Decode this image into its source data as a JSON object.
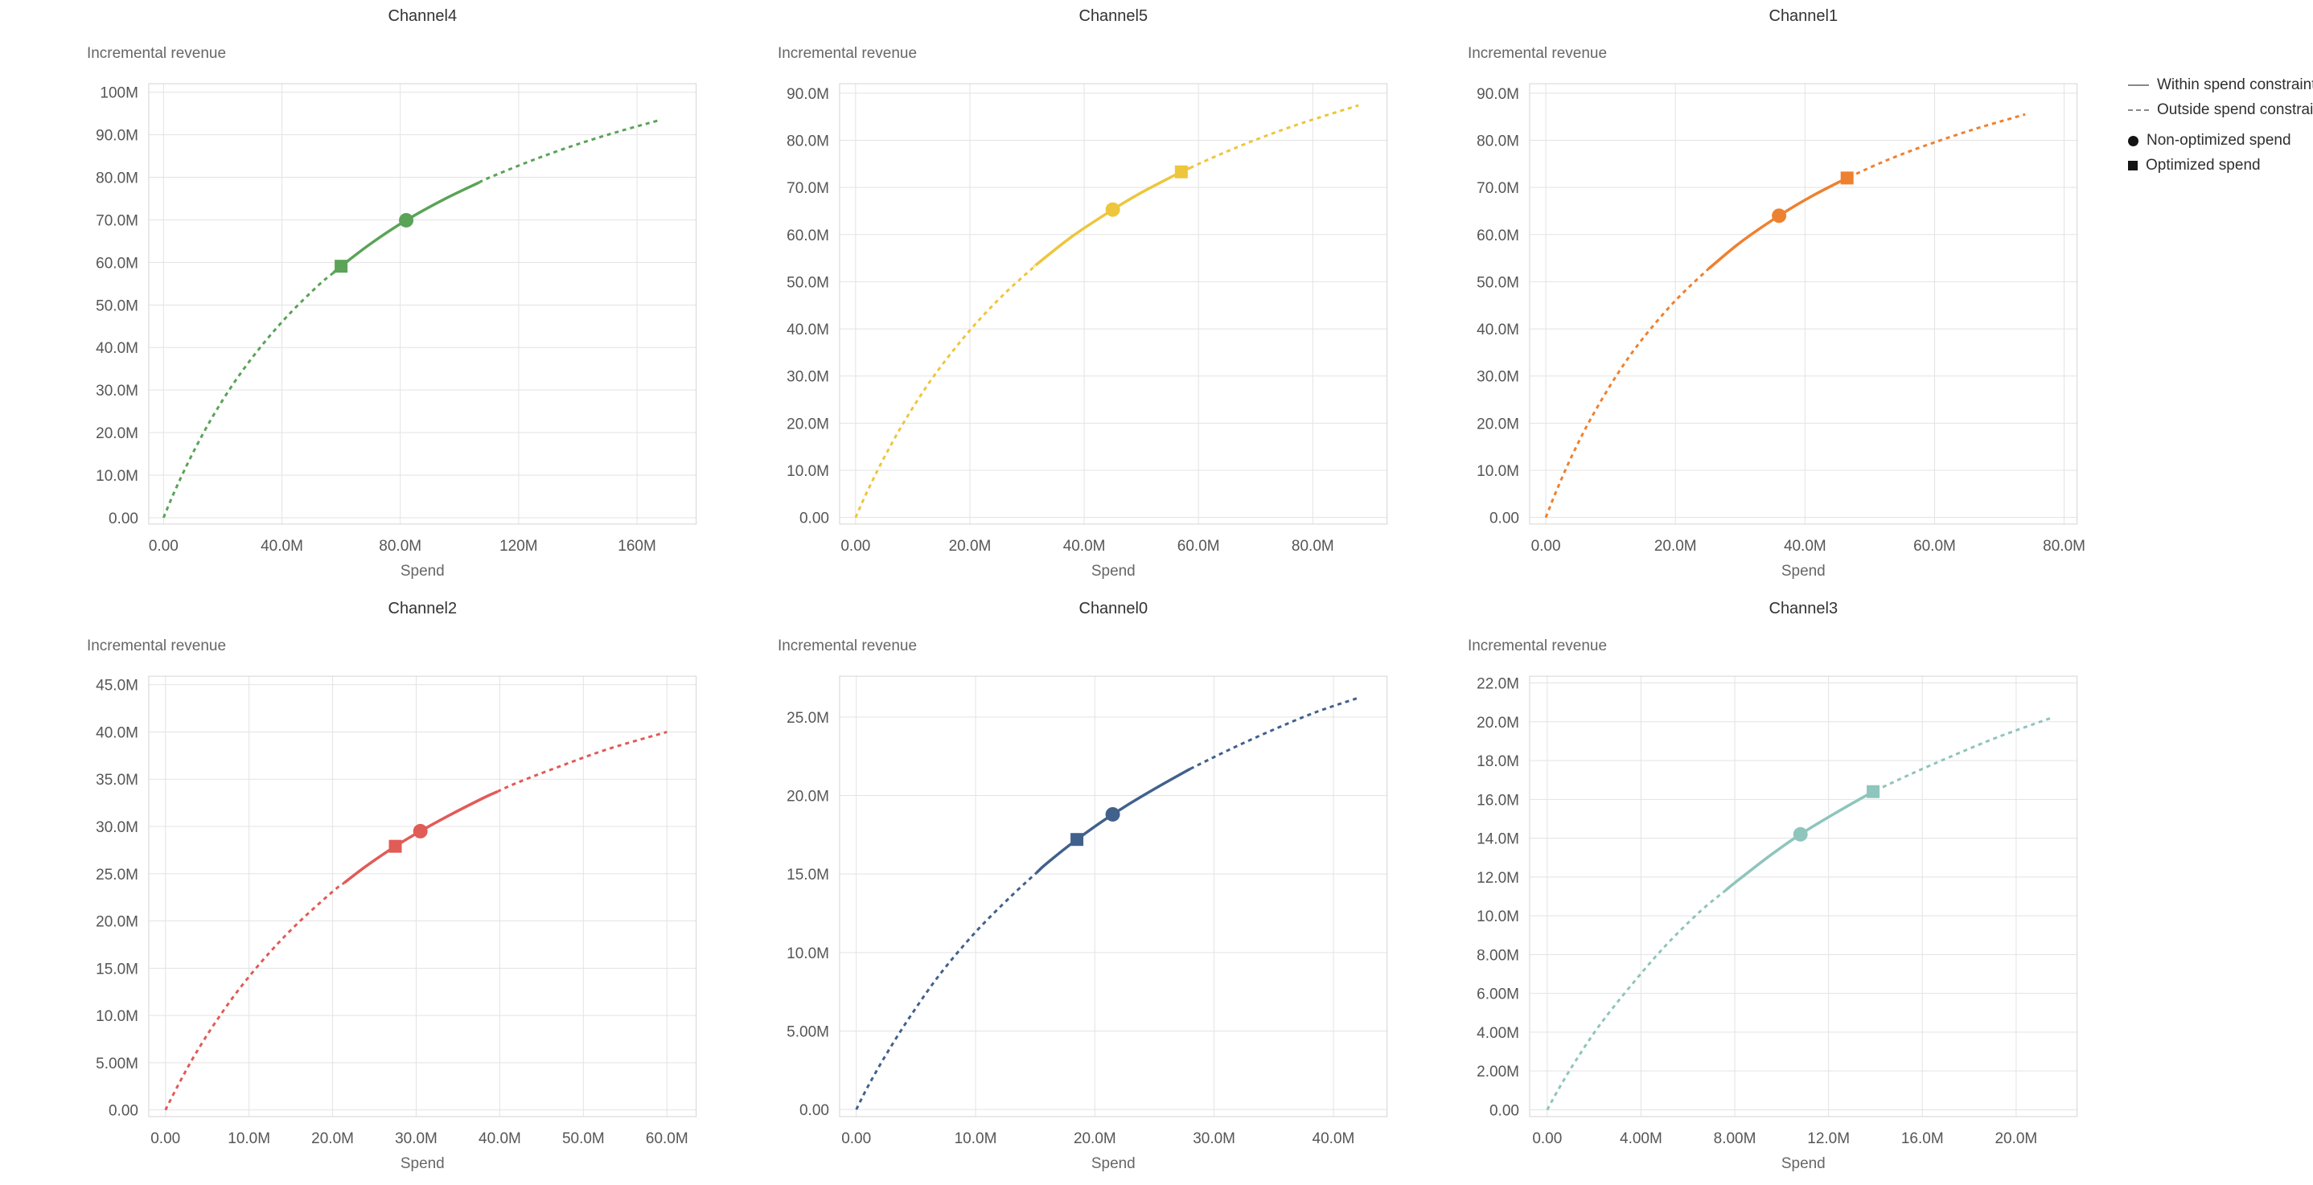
{
  "page": {
    "background": "#ffffff"
  },
  "style": {
    "grid_color": "#e3e3e3",
    "border_color": "#d4d4d4",
    "tick_color": "#565656",
    "title_color": "#333333",
    "axis_label_color": "#666666",
    "legend_line_color": "#888888",
    "legend_marker_color": "#141414"
  },
  "legend": {
    "items": [
      {
        "label": "Within spend constraint",
        "swatch": "solid-line"
      },
      {
        "label": "Outside spend constraint",
        "swatch": "dashed-line"
      },
      {
        "label": "Non-optimized spend",
        "swatch": "circle"
      },
      {
        "label": "Optimized spend",
        "swatch": "square"
      }
    ]
  },
  "chart_data": [
    {
      "type": "line",
      "title": "Channel4",
      "ylabel": "Incremental revenue",
      "xlabel": "Spend",
      "units": "M",
      "color": "#5aa357",
      "xlim": [
        -5,
        180
      ],
      "ylim": [
        -1.5,
        102
      ],
      "x_ticks": [
        {
          "v": 0,
          "label": "0.00"
        },
        {
          "v": 40,
          "label": "40.0M"
        },
        {
          "v": 80,
          "label": "80.0M"
        },
        {
          "v": 120,
          "label": "120M"
        },
        {
          "v": 160,
          "label": "160M"
        }
      ],
      "y_ticks": [
        {
          "v": 0,
          "label": "0.00"
        },
        {
          "v": 10,
          "label": "10.0M"
        },
        {
          "v": 20,
          "label": "20.0M"
        },
        {
          "v": 30,
          "label": "30.0M"
        },
        {
          "v": 40,
          "label": "40.0M"
        },
        {
          "v": 50,
          "label": "50.0M"
        },
        {
          "v": 60,
          "label": "60.0M"
        },
        {
          "v": 70,
          "label": "70.0M"
        },
        {
          "v": 80,
          "label": "80.0M"
        },
        {
          "v": 90,
          "label": "90.0M"
        },
        {
          "v": 100,
          "label": "100M"
        }
      ],
      "curve": {
        "x": [
          0,
          3,
          7,
          12,
          18,
          25,
          33,
          42,
          52,
          60,
          70,
          82,
          95,
          110,
          125,
          140,
          155,
          168
        ],
        "y": [
          0,
          5.0,
          11.1,
          18.0,
          25.4,
          32.9,
          40.3,
          47.5,
          54.4,
          59.1,
          64.4,
          69.9,
          74.9,
          79.9,
          84.1,
          87.8,
          91.0,
          93.5
        ]
      },
      "solid_range": [
        57.4,
        106.6
      ],
      "markers": [
        {
          "kind": "optimized",
          "shape": "square",
          "x": 60,
          "y": 59.1
        },
        {
          "kind": "non_optimized",
          "shape": "circle",
          "x": 82,
          "y": 69.9
        }
      ]
    },
    {
      "type": "line",
      "title": "Channel5",
      "ylabel": "Incremental revenue",
      "xlabel": "Spend",
      "units": "M",
      "color": "#edc63c",
      "xlim": [
        -2.8,
        93
      ],
      "ylim": [
        -1.4,
        92
      ],
      "x_ticks": [
        {
          "v": 0,
          "label": "0.00"
        },
        {
          "v": 20,
          "label": "20.0M"
        },
        {
          "v": 40,
          "label": "40.0M"
        },
        {
          "v": 60,
          "label": "60.0M"
        },
        {
          "v": 80,
          "label": "80.0M"
        }
      ],
      "y_ticks": [
        {
          "v": 0,
          "label": "0.00"
        },
        {
          "v": 10,
          "label": "10.0M"
        },
        {
          "v": 20,
          "label": "20.0M"
        },
        {
          "v": 30,
          "label": "30.0M"
        },
        {
          "v": 40,
          "label": "40.0M"
        },
        {
          "v": 50,
          "label": "50.0M"
        },
        {
          "v": 60,
          "label": "60.0M"
        },
        {
          "v": 70,
          "label": "70.0M"
        },
        {
          "v": 80,
          "label": "80.0M"
        },
        {
          "v": 90,
          "label": "90.0M"
        }
      ],
      "curve": {
        "x": [
          0,
          2,
          5,
          9,
          14,
          20,
          26,
          32,
          38,
          45,
          50,
          57,
          63,
          70,
          78,
          88
        ],
        "y": [
          0,
          5.4,
          12.7,
          21.3,
          30.5,
          39.7,
          47.4,
          54.0,
          59.7,
          65.3,
          68.9,
          73.3,
          76.6,
          80.1,
          83.6,
          87.4
        ]
      },
      "solid_range": [
        31.5,
        58.5
      ],
      "markers": [
        {
          "kind": "non_optimized",
          "shape": "circle",
          "x": 45,
          "y": 65.3
        },
        {
          "kind": "optimized",
          "shape": "square",
          "x": 57,
          "y": 73.3
        }
      ]
    },
    {
      "type": "line",
      "title": "Channel1",
      "ylabel": "Incremental revenue",
      "xlabel": "Spend",
      "units": "M",
      "color": "#ee8130",
      "xlim": [
        -2.5,
        82
      ],
      "ylim": [
        -1.4,
        92
      ],
      "x_ticks": [
        {
          "v": 0,
          "label": "0.00"
        },
        {
          "v": 20,
          "label": "20.0M"
        },
        {
          "v": 40,
          "label": "40.0M"
        },
        {
          "v": 60,
          "label": "60.0M"
        },
        {
          "v": 80,
          "label": "80.0M"
        }
      ],
      "y_ticks": [
        {
          "v": 0,
          "label": "0.00"
        },
        {
          "v": 10,
          "label": "10.0M"
        },
        {
          "v": 20,
          "label": "20.0M"
        },
        {
          "v": 30,
          "label": "30.0M"
        },
        {
          "v": 40,
          "label": "40.0M"
        },
        {
          "v": 50,
          "label": "50.0M"
        },
        {
          "v": 60,
          "label": "60.0M"
        },
        {
          "v": 70,
          "label": "70.0M"
        },
        {
          "v": 80,
          "label": "80.0M"
        },
        {
          "v": 90,
          "label": "90.0M"
        }
      ],
      "curve": {
        "x": [
          0,
          1.5,
          4,
          7,
          11,
          15,
          20,
          25,
          30,
          36,
          41,
          46.5,
          52,
          58,
          66,
          74
        ],
        "y": [
          0,
          5.2,
          13.0,
          21.1,
          30.3,
          38.0,
          46.0,
          52.6,
          58.3,
          64.0,
          68.1,
          72.0,
          75.4,
          78.6,
          82.3,
          85.5
        ]
      },
      "solid_range": [
        25.2,
        46.8
      ],
      "markers": [
        {
          "kind": "non_optimized",
          "shape": "circle",
          "x": 36,
          "y": 64.0
        },
        {
          "kind": "optimized",
          "shape": "square",
          "x": 46.5,
          "y": 72.0
        }
      ]
    },
    {
      "type": "line",
      "title": "Channel2",
      "ylabel": "Incremental revenue",
      "xlabel": "Spend",
      "units": "M",
      "color": "#e15b57",
      "xlim": [
        -2,
        63.5
      ],
      "ylim": [
        -0.7,
        45.9
      ],
      "x_ticks": [
        {
          "v": 0,
          "label": "0.00"
        },
        {
          "v": 10,
          "label": "10.0M"
        },
        {
          "v": 20,
          "label": "20.0M"
        },
        {
          "v": 30,
          "label": "30.0M"
        },
        {
          "v": 40,
          "label": "40.0M"
        },
        {
          "v": 50,
          "label": "50.0M"
        },
        {
          "v": 60,
          "label": "60.0M"
        }
      ],
      "y_ticks": [
        {
          "v": 0,
          "label": "0.00"
        },
        {
          "v": 5,
          "label": "5.00M"
        },
        {
          "v": 10,
          "label": "10.0M"
        },
        {
          "v": 15,
          "label": "15.0M"
        },
        {
          "v": 20,
          "label": "20.0M"
        },
        {
          "v": 25,
          "label": "25.0M"
        },
        {
          "v": 30,
          "label": "30.0M"
        },
        {
          "v": 35,
          "label": "35.0M"
        },
        {
          "v": 40,
          "label": "40.0M"
        },
        {
          "v": 45,
          "label": "45.0M"
        }
      ],
      "curve": {
        "x": [
          0,
          1.5,
          3.5,
          6,
          9,
          12.5,
          16,
          20,
          24,
          27.5,
          30.5,
          34,
          38,
          42,
          47,
          53,
          60
        ],
        "y": [
          0,
          2.6,
          5.8,
          9.3,
          13.0,
          16.7,
          19.9,
          23.1,
          25.8,
          27.9,
          29.5,
          31.2,
          33.0,
          34.6,
          36.3,
          38.2,
          40.0
        ]
      },
      "solid_range": [
        21.4,
        39.7
      ],
      "markers": [
        {
          "kind": "optimized",
          "shape": "square",
          "x": 27.5,
          "y": 27.9
        },
        {
          "kind": "non_optimized",
          "shape": "circle",
          "x": 30.5,
          "y": 29.5
        }
      ]
    },
    {
      "type": "line",
      "title": "Channel0",
      "ylabel": "Incremental revenue",
      "xlabel": "Spend",
      "units": "M",
      "color": "#41618c",
      "xlim": [
        -1.4,
        44.5
      ],
      "ylim": [
        -0.45,
        27.6
      ],
      "x_ticks": [
        {
          "v": 0,
          "label": "0.00"
        },
        {
          "v": 10,
          "label": "10.0M"
        },
        {
          "v": 20,
          "label": "20.0M"
        },
        {
          "v": 30,
          "label": "30.0M"
        },
        {
          "v": 40,
          "label": "40.0M"
        }
      ],
      "y_ticks": [
        {
          "v": 0,
          "label": "0.00"
        },
        {
          "v": 5,
          "label": "5.00M"
        },
        {
          "v": 10,
          "label": "10.0M"
        },
        {
          "v": 15,
          "label": "15.0M"
        },
        {
          "v": 20,
          "label": "20.0M"
        },
        {
          "v": 25,
          "label": "25.0M"
        }
      ],
      "curve": {
        "x": [
          0,
          1,
          2.5,
          4.5,
          7,
          10,
          13,
          16,
          18.5,
          21.5,
          24.5,
          28,
          31.5,
          35,
          38.5,
          42
        ],
        "y": [
          0,
          1.5,
          3.5,
          5.9,
          8.6,
          11.3,
          13.6,
          15.7,
          17.2,
          18.8,
          20.2,
          21.7,
          23.0,
          24.2,
          25.3,
          26.2
        ]
      },
      "solid_range": [
        15.1,
        28.0
      ],
      "markers": [
        {
          "kind": "optimized",
          "shape": "square",
          "x": 18.5,
          "y": 17.2
        },
        {
          "kind": "non_optimized",
          "shape": "circle",
          "x": 21.5,
          "y": 18.8
        }
      ]
    },
    {
      "type": "line",
      "title": "Channel3",
      "ylabel": "Incremental revenue",
      "xlabel": "Spend",
      "units": "M",
      "color": "#8ec5bc",
      "xlim": [
        -0.75,
        22.6
      ],
      "ylim": [
        -0.35,
        22.35
      ],
      "x_ticks": [
        {
          "v": 0,
          "label": "0.00"
        },
        {
          "v": 4,
          "label": "4.00M"
        },
        {
          "v": 8,
          "label": "8.00M"
        },
        {
          "v": 12,
          "label": "12.0M"
        },
        {
          "v": 16,
          "label": "16.0M"
        },
        {
          "v": 20,
          "label": "20.0M"
        }
      ],
      "y_ticks": [
        {
          "v": 0,
          "label": "0.00"
        },
        {
          "v": 2,
          "label": "2.00M"
        },
        {
          "v": 4,
          "label": "4.00M"
        },
        {
          "v": 6,
          "label": "6.00M"
        },
        {
          "v": 8,
          "label": "8.00M"
        },
        {
          "v": 10,
          "label": "10.0M"
        },
        {
          "v": 12,
          "label": "12.0M"
        },
        {
          "v": 14,
          "label": "14.0M"
        },
        {
          "v": 16,
          "label": "16.0M"
        },
        {
          "v": 18,
          "label": "18.0M"
        },
        {
          "v": 20,
          "label": "20.0M"
        },
        {
          "v": 22,
          "label": "22.0M"
        }
      ],
      "curve": {
        "x": [
          0,
          0.5,
          1.2,
          2.2,
          3.5,
          5,
          6.5,
          8,
          9.5,
          10.8,
          12.3,
          13.9,
          15.5,
          17.2,
          19.2,
          21.5
        ],
        "y": [
          0,
          1.1,
          2.5,
          4.3,
          6.3,
          8.4,
          10.2,
          11.7,
          13.1,
          14.2,
          15.3,
          16.4,
          17.3,
          18.2,
          19.2,
          20.2
        ]
      },
      "solid_range": [
        7.6,
        14.0
      ],
      "markers": [
        {
          "kind": "non_optimized",
          "shape": "circle",
          "x": 10.8,
          "y": 14.2
        },
        {
          "kind": "optimized",
          "shape": "square",
          "x": 13.9,
          "y": 16.4
        }
      ]
    }
  ]
}
